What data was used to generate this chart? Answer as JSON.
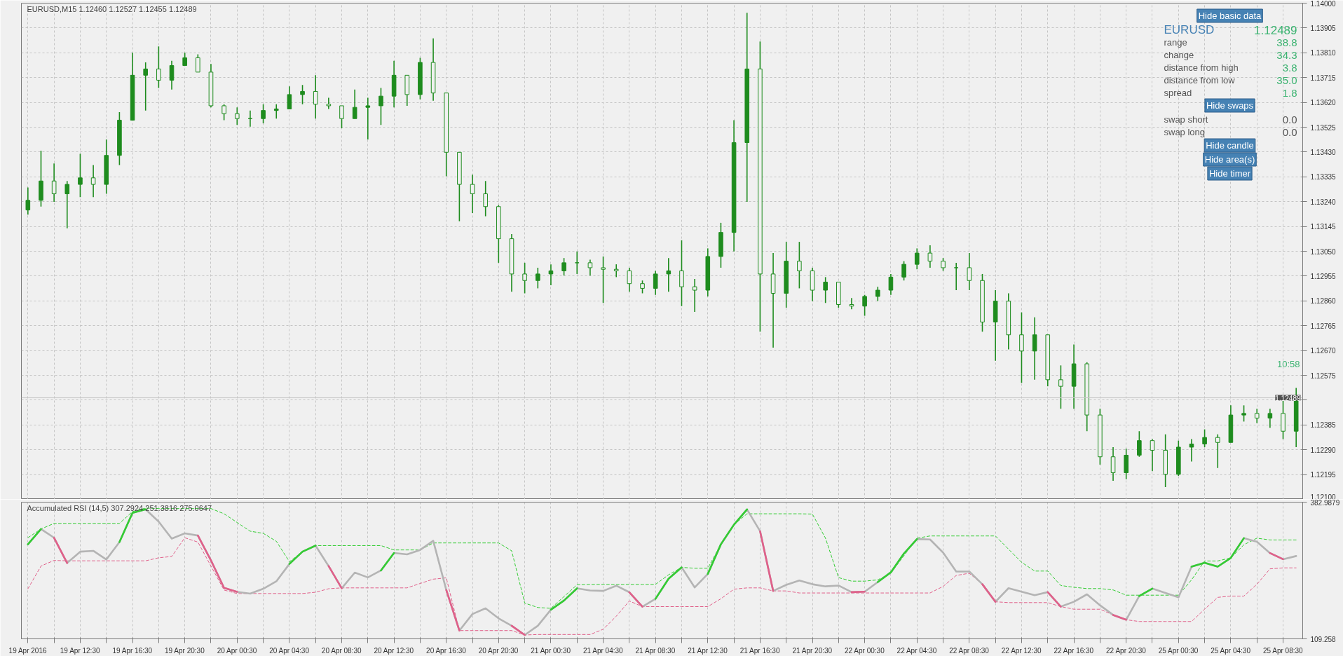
{
  "chart_data": [
    {
      "type": "candlestick",
      "title": "EURUSD,M15  1.12460 1.12527 1.12455 1.12489",
      "categories": [
        null,
        null,
        null,
        null,
        null,
        null,
        null,
        null,
        null,
        null,
        null,
        null,
        null,
        null,
        null,
        null,
        null,
        null,
        null,
        null,
        null,
        null,
        null,
        null,
        null,
        null,
        null,
        null,
        null,
        null,
        null,
        null,
        null,
        null,
        null,
        null,
        null,
        null,
        null,
        null,
        null,
        null,
        null,
        null,
        null,
        null,
        null,
        null,
        null,
        null,
        null,
        null,
        null,
        null,
        null,
        null,
        null,
        null,
        null,
        null,
        null,
        null,
        null,
        null,
        null,
        null,
        null,
        null,
        null,
        null,
        null,
        null,
        null,
        null,
        null,
        null,
        null,
        null,
        null,
        null,
        null,
        null,
        null,
        null,
        null,
        null,
        null,
        null,
        null,
        null,
        null,
        null,
        null,
        null,
        null,
        null,
        null,
        null
      ],
      "series": [
        {
          "color": "#1e8c1e",
          "ohlc": [
            [
              1.13208,
              1.13294,
              1.1319,
              1.13245
            ],
            [
              1.13245,
              1.13435,
              1.13221,
              1.13319
            ],
            [
              1.13319,
              1.13386,
              1.13239,
              1.1327
            ],
            [
              1.1327,
              1.13319,
              1.13138,
              1.13306
            ],
            [
              1.13306,
              1.13423,
              1.13257,
              1.13331
            ],
            [
              1.13331,
              1.1338,
              1.13257,
              1.13306
            ],
            [
              1.13306,
              1.13478,
              1.1327,
              1.13417
            ],
            [
              1.13417,
              1.13583,
              1.1338,
              1.13552
            ],
            [
              1.13552,
              1.1381,
              1.13552,
              1.13724
            ],
            [
              1.13724,
              1.13773,
              1.13589,
              1.13748
            ],
            [
              1.13748,
              1.13834,
              1.13675,
              1.13705
            ],
            [
              1.13705,
              1.13779,
              1.13669,
              1.13761
            ],
            [
              1.13761,
              1.1381,
              1.13761,
              1.13791
            ],
            [
              1.13791,
              1.13804,
              1.13736,
              1.13736
            ],
            [
              1.13736,
              1.13767,
              1.13601,
              1.13607
            ],
            [
              1.13607,
              1.13613,
              1.13552,
              1.13577
            ],
            [
              1.13577,
              1.13601,
              1.13534,
              1.13558
            ],
            [
              1.13558,
              1.13589,
              1.13527,
              1.13558
            ],
            [
              1.13558,
              1.13613,
              1.1354,
              1.13589
            ],
            [
              1.13589,
              1.13613,
              1.13558,
              1.13595
            ],
            [
              1.13595,
              1.13681,
              1.13595,
              1.1365
            ],
            [
              1.1365,
              1.13687,
              1.13613,
              1.13662
            ],
            [
              1.13662,
              1.13724,
              1.13558,
              1.13613
            ],
            [
              1.13613,
              1.13638,
              1.13595,
              1.13607
            ],
            [
              1.13607,
              1.13607,
              1.13521,
              1.13558
            ],
            [
              1.13558,
              1.13669,
              1.13558,
              1.13601
            ],
            [
              1.13601,
              1.13638,
              1.13478,
              1.13607
            ],
            [
              1.13607,
              1.13675,
              1.13534,
              1.13644
            ],
            [
              1.13644,
              1.13779,
              1.13601,
              1.13724
            ],
            [
              1.13724,
              1.13724,
              1.13607,
              1.1365
            ],
            [
              1.1365,
              1.13791,
              1.13632,
              1.13773
            ],
            [
              1.13773,
              1.13865,
              1.13626,
              1.13656
            ],
            [
              1.13656,
              1.13656,
              1.13337,
              1.13429
            ],
            [
              1.13429,
              1.13429,
              1.13165,
              1.13306
            ],
            [
              1.13306,
              1.13343,
              1.13196,
              1.1327
            ],
            [
              1.1327,
              1.13319,
              1.13184,
              1.13221
            ],
            [
              1.13221,
              1.13227,
              1.13006,
              1.13098
            ],
            [
              1.13098,
              1.13116,
              1.12895,
              1.12963
            ],
            [
              1.12963,
              1.13006,
              1.12889,
              1.12938
            ],
            [
              1.12938,
              1.12987,
              1.12908,
              1.12963
            ],
            [
              1.12963,
              1.13,
              1.1292,
              1.12975
            ],
            [
              1.12975,
              1.13024,
              1.12957,
              1.13006
            ],
            [
              1.13006,
              1.13049,
              1.12963,
              1.13006
            ],
            [
              1.13006,
              1.13018,
              1.12957,
              1.12987
            ],
            [
              1.12987,
              1.1303,
              1.12852,
              1.12981
            ],
            [
              1.12981,
              1.13,
              1.12951,
              1.12975
            ],
            [
              1.12975,
              1.12987,
              1.12895,
              1.12926
            ],
            [
              1.12926,
              1.12938,
              1.12889,
              1.12908
            ],
            [
              1.12908,
              1.12975,
              1.12883,
              1.12963
            ],
            [
              1.12963,
              1.13024,
              1.12895,
              1.12975
            ],
            [
              1.12975,
              1.13092,
              1.1284,
              1.12914
            ],
            [
              1.12914,
              1.12944,
              1.12818,
              1.12901
            ],
            [
              1.12901,
              1.13061,
              1.12877,
              1.1303
            ],
            [
              1.1303,
              1.13159,
              1.12987,
              1.13122
            ],
            [
              1.13122,
              1.13552,
              1.13049,
              1.13466
            ],
            [
              1.13466,
              1.13963,
              1.13239,
              1.13748
            ],
            [
              1.13748,
              1.13853,
              1.12742,
              1.12963
            ],
            [
              1.12963,
              1.13043,
              1.12681,
              1.12889
            ],
            [
              1.12889,
              1.13086,
              1.12834,
              1.13012
            ],
            [
              1.13012,
              1.13086,
              1.12908,
              1.12975
            ],
            [
              1.12975,
              1.12987,
              1.12859,
              1.12901
            ],
            [
              1.12901,
              1.12951,
              1.12852,
              1.12932
            ],
            [
              1.12932,
              1.12932,
              1.12834,
              1.12846
            ],
            [
              1.12846,
              1.12871,
              1.12828,
              1.1284
            ],
            [
              1.1284,
              1.12883,
              1.12803,
              1.12877
            ],
            [
              1.12877,
              1.12914,
              1.12859,
              1.12901
            ],
            [
              1.12901,
              1.12963,
              1.12883,
              1.12951
            ],
            [
              1.12951,
              1.13012,
              1.12938,
              1.13
            ],
            [
              1.13,
              1.13061,
              1.12981,
              1.13043
            ],
            [
              1.13043,
              1.13073,
              1.12987,
              1.13012
            ],
            [
              1.13012,
              1.13024,
              1.12975,
              1.12987
            ],
            [
              1.12987,
              1.13006,
              1.12901,
              1.12987
            ],
            [
              1.12987,
              1.13043,
              1.12901,
              1.12938
            ],
            [
              1.12938,
              1.12963,
              1.12742,
              1.12779
            ],
            [
              1.12779,
              1.12901,
              1.12631,
              1.12859
            ],
            [
              1.12859,
              1.12889,
              1.12674,
              1.1273
            ],
            [
              1.1273,
              1.12816,
              1.12546,
              1.12668
            ],
            [
              1.12668,
              1.12797,
              1.12558,
              1.1273
            ],
            [
              1.1273,
              1.1273,
              1.12533,
              1.12558
            ],
            [
              1.12558,
              1.12613,
              1.12447,
              1.12533
            ],
            [
              1.12533,
              1.12693,
              1.12447,
              1.12619
            ],
            [
              1.12619,
              1.12625,
              1.12361,
              1.12423
            ],
            [
              1.12423,
              1.12447,
              1.12233,
              1.12263
            ],
            [
              1.12263,
              1.123,
              1.12171,
              1.12202
            ],
            [
              1.12202,
              1.12294,
              1.12177,
              1.12269
            ],
            [
              1.12269,
              1.12361,
              1.12263,
              1.12325
            ],
            [
              1.12325,
              1.12331,
              1.12208,
              1.12288
            ],
            [
              1.12288,
              1.12349,
              1.12147,
              1.12196
            ],
            [
              1.12196,
              1.12325,
              1.1219,
              1.123
            ],
            [
              1.123,
              1.12331,
              1.12245,
              1.12312
            ],
            [
              1.12312,
              1.12368,
              1.123,
              1.12337
            ],
            [
              1.12337,
              1.12349,
              1.1222,
              1.12318
            ],
            [
              1.12318,
              1.1246,
              1.12318,
              1.12423
            ],
            [
              1.12423,
              1.1246,
              1.12398,
              1.12429
            ],
            [
              1.12429,
              1.12447,
              1.12392,
              1.12411
            ],
            [
              1.12411,
              1.12447,
              1.12374,
              1.12429
            ],
            [
              1.12429,
              1.12478,
              1.12331,
              1.12361
            ],
            [
              1.12361,
              1.12527,
              1.123,
              1.12489
            ]
          ]
        }
      ],
      "ylim": [
        1.121,
        1.14
      ],
      "yticks": [
        {
          "value": 1.14,
          "label": "1.14000"
        },
        {
          "value": 1.13905,
          "label": "1.13905"
        },
        {
          "value": 1.1381,
          "label": "1.13810"
        },
        {
          "value": 1.13715,
          "label": "1.13715"
        },
        {
          "value": 1.1362,
          "label": "1.13620"
        },
        {
          "value": 1.13525,
          "label": "1.13525"
        },
        {
          "value": 1.1343,
          "label": "1.13430"
        },
        {
          "value": 1.13335,
          "label": "1.13335"
        },
        {
          "value": 1.1324,
          "label": "1.13240"
        },
        {
          "value": 1.13145,
          "label": "1.13145"
        },
        {
          "value": 1.1305,
          "label": "1.13050"
        },
        {
          "value": 1.12955,
          "label": "1.12955"
        },
        {
          "value": 1.1286,
          "label": "1.12860"
        },
        {
          "value": 1.12765,
          "label": "1.12765"
        },
        {
          "value": 1.1267,
          "label": "1.12670"
        },
        {
          "value": 1.12575,
          "label": "1.12575"
        },
        {
          "value": 1.1248,
          "label": null
        },
        {
          "value": 1.12385,
          "label": "1.12385"
        },
        {
          "value": 1.1229,
          "label": "1.12290"
        },
        {
          "value": 1.12195,
          "label": "1.12195"
        },
        {
          "value": 1.121,
          "label": "1.12100"
        }
      ],
      "grid": true,
      "tick_labels": "y",
      "ref_lines": [
        {
          "axis": "y",
          "value": 1.12489,
          "label": "1.12489",
          "color": "#c8c8c8"
        }
      ],
      "annotations": [
        "Hide basic data",
        "EURUSD",
        "1.12489",
        "range",
        "38.8",
        "change",
        "34.3",
        "distance from high",
        "3.8",
        "distance from low",
        "35.0",
        "spread",
        "1.8",
        "Hide swaps",
        "swap short",
        "0.0",
        "swap long",
        "0.0",
        "Hide candle",
        "Hide area(s)",
        "Hide timer",
        "10:58"
      ]
    },
    {
      "type": "line",
      "title": "Accumulated RSI (14,5) 307.2924 251.3816 275.0647",
      "categories": [
        "19 Apr 2016",
        null,
        null,
        null,
        "19 Apr 12:30",
        null,
        null,
        null,
        "19 Apr 16:30",
        null,
        null,
        null,
        "19 Apr 20:30",
        null,
        null,
        null,
        "20 Apr 00:30",
        null,
        null,
        null,
        "20 Apr 04:30",
        null,
        null,
        null,
        "20 Apr 08:30",
        null,
        null,
        null,
        "20 Apr 12:30",
        null,
        null,
        null,
        "20 Apr 16:30",
        null,
        null,
        null,
        "20 Apr 20:30",
        null,
        null,
        null,
        "21 Apr 00:30",
        null,
        null,
        null,
        "21 Apr 04:30",
        null,
        null,
        null,
        "21 Apr 08:30",
        null,
        null,
        null,
        "21 Apr 12:30",
        null,
        null,
        null,
        "21 Apr 16:30",
        null,
        null,
        null,
        "21 Apr 20:30",
        null,
        null,
        null,
        "22 Apr 00:30",
        null,
        null,
        null,
        "22 Apr 04:30",
        null,
        null,
        null,
        "22 Apr 08:30",
        null,
        null,
        null,
        "22 Apr 12:30",
        null,
        null,
        null,
        "22 Apr 16:30",
        null,
        null,
        null,
        "22 Apr 20:30",
        null,
        null,
        null,
        "25 Apr 00:30",
        null,
        null,
        null,
        "25 Apr 04:30",
        null,
        null,
        null,
        "25 Apr 08:30",
        null
      ],
      "series": [
        {
          "color": "#33cc33",
          "line_style": "dashed",
          "values": [
            311.7,
            329.2,
            340.5,
            340.5,
            340.5,
            340.5,
            340.5,
            340.5,
            364.1,
            371.1,
            370.2,
            370.2,
            370.2,
            370.2,
            370.2,
            359.7,
            342.3,
            324.8,
            320.5,
            304.7,
            263.7,
            283.8,
            296.0,
            296.0,
            296.0,
            296.0,
            296.0,
            296.0,
            287.3,
            287.3,
            287.3,
            301.3,
            301.3,
            301.3,
            301.3,
            301.3,
            301.3,
            285.5,
            180.8,
            172.0,
            170.3,
            193.9,
            217.4,
            218.3,
            218.3,
            218.3,
            218.3,
            218.3,
            218.3,
            237.5,
            252.4,
            250.6,
            250.6,
            298.6,
            337.9,
            359.7,
            359.7,
            359.7,
            359.7,
            359.7,
            359.2,
            310.9,
            231.8,
            224.8,
            224.8,
            227.4,
            240.6,
            275.7,
            310.9,
            315.3,
            315.3,
            315.3,
            315.3,
            315.3,
            315.3,
            288.9,
            262.6,
            245.0,
            245.0,
            216.0,
            212.5,
            209.9,
            209.9,
            207.2,
            196.7,
            196.7,
            196.7,
            196.7,
            196.7,
            227.4,
            265.2,
            265.2,
            271.4,
            297.7,
            310.9,
            307.29,
            307.29,
            307.29
          ]
        },
        {
          "color": "#e0608a",
          "line_style": "dashed",
          "values": [
            209.6,
            255.0,
            266.3,
            265.5,
            265.5,
            265.5,
            265.5,
            265.5,
            265.5,
            265.5,
            271.6,
            274.2,
            311.7,
            303.0,
            255.0,
            207.0,
            200.0,
            200.0,
            200.0,
            200.0,
            200.0,
            200.0,
            202.6,
            209.6,
            211.3,
            211.3,
            211.3,
            211.3,
            211.3,
            211.3,
            220.1,
            228.8,
            231.4,
            125.8,
            125.8,
            125.8,
            125.8,
            125.8,
            117.0,
            117.9,
            117.9,
            117.9,
            117.9,
            117.9,
            128.4,
            154.6,
            185.1,
            173.8,
            173.8,
            173.8,
            173.8,
            173.8,
            173.8,
            189.5,
            208.7,
            211.3,
            211.3,
            205.2,
            205.2,
            201.1,
            201.1,
            201.1,
            201.1,
            201.1,
            201.1,
            201.1,
            201.1,
            201.1,
            201.1,
            201.1,
            214.3,
            236.2,
            240.6,
            218.6,
            183.5,
            181.8,
            181.8,
            181.8,
            181.8,
            173.8,
            168.6,
            168.6,
            168.6,
            157.1,
            147.5,
            144.0,
            144.0,
            144.0,
            144.0,
            144.0,
            168.6,
            192.3,
            194.9,
            194.9,
            218.6,
            249.4,
            251.38,
            251.38
          ]
        },
        {
          "color": "#b4b4b4",
          "line_style": "solid",
          "values": [
            298.6,
            329.2,
            311.7,
            261.1,
            283.8,
            285.5,
            268.1,
            303.0,
            361.5,
            368.5,
            344.0,
            310.0,
            320.5,
            316.1,
            266.3,
            211.3,
            203.4,
            199.9,
            209.6,
            224.4,
            259.3,
            283.8,
            296.0,
            255.0,
            210.4,
            241.9,
            232.3,
            246.2,
            281.2,
            278.5,
            287.3,
            305.6,
            206.9,
            125.8,
            158.9,
            170.3,
            150.2,
            135.4,
            117.0,
            135.4,
            167.7,
            186.0,
            210.4,
            206.1,
            205.2,
            215.7,
            202.6,
            173.8,
            189.5,
            229.7,
            252.4,
            212.2,
            239.3,
            298.6,
            337.9,
            368.5,
            324.8,
            205.2,
            217.4,
            226.2,
            218.6,
            214.3,
            216.0,
            202.8,
            203.7,
            223.0,
            242.4,
            280.1,
            309.1,
            308.2,
            281.9,
            244.1,
            244.1,
            218.6,
            183.5,
            210.7,
            203.7,
            196.7,
            202.8,
            173.8,
            183.5,
            198.4,
            176.4,
            157.1,
            147.5,
            194.9,
            209.9,
            201.1,
            192.3,
            253.8,
            261.7,
            253.8,
            271.3,
            310.9,
            303.8,
            281.0,
            268.7,
            275.06
          ]
        },
        {
          "color": "#33cc33",
          "line_style": "solid",
          "values": [
            298.6,
            329.2,
            null,
            null,
            null,
            null,
            null,
            303.0,
            361.5,
            368.5,
            null,
            null,
            null,
            null,
            null,
            null,
            null,
            null,
            null,
            null,
            259.3,
            283.8,
            296.0,
            null,
            null,
            null,
            null,
            246.2,
            281.2,
            null,
            null,
            null,
            null,
            null,
            null,
            null,
            null,
            null,
            null,
            null,
            167.7,
            186.0,
            210.4,
            null,
            null,
            null,
            null,
            null,
            189.5,
            229.7,
            252.4,
            null,
            239.3,
            298.6,
            337.9,
            368.5,
            null,
            null,
            null,
            null,
            null,
            null,
            null,
            null,
            null,
            223.0,
            242.4,
            280.1,
            309.1,
            null,
            null,
            null,
            null,
            null,
            null,
            null,
            null,
            null,
            null,
            null,
            null,
            null,
            null,
            null,
            null,
            194.9,
            209.9,
            null,
            null,
            253.8,
            261.7,
            253.8,
            271.3,
            310.9,
            null,
            null,
            null,
            null
          ]
        },
        {
          "color": "#e0608a",
          "line_style": "solid",
          "values": [
            null,
            null,
            311.7,
            261.1,
            null,
            null,
            null,
            null,
            null,
            null,
            null,
            null,
            null,
            316.1,
            266.3,
            211.3,
            203.4,
            null,
            null,
            null,
            null,
            null,
            null,
            255.0,
            210.4,
            null,
            null,
            null,
            null,
            null,
            null,
            null,
            206.9,
            125.8,
            null,
            null,
            null,
            135.4,
            117.0,
            null,
            null,
            null,
            null,
            null,
            null,
            null,
            202.6,
            173.8,
            null,
            null,
            null,
            null,
            null,
            null,
            null,
            null,
            324.8,
            205.2,
            null,
            null,
            null,
            null,
            null,
            202.8,
            203.7,
            null,
            null,
            null,
            null,
            null,
            null,
            null,
            null,
            218.6,
            183.5,
            null,
            null,
            null,
            202.8,
            173.8,
            null,
            null,
            null,
            157.1,
            147.5,
            null,
            null,
            null,
            null,
            null,
            null,
            null,
            null,
            null,
            null,
            281.0,
            268.7,
            null
          ]
        }
      ],
      "ylim": [
        109.258,
        382.9879
      ],
      "yticks": [
        109.258,
        382.9879
      ],
      "grid": true
    }
  ]
}
